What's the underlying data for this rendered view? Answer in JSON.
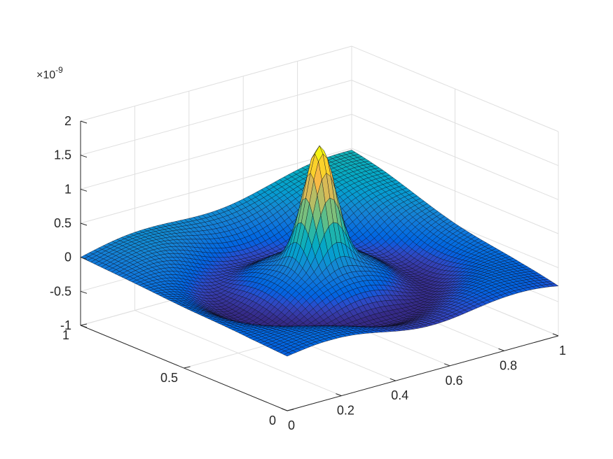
{
  "chart_data": {
    "type": "surface",
    "title": "",
    "xlabel": "",
    "ylabel": "",
    "zlabel": "",
    "x_range": [
      0,
      1
    ],
    "y_range": [
      0,
      1
    ],
    "z_range": [
      -1,
      2
    ],
    "z_exponent_label": "×10",
    "z_exponent_power": "-9",
    "grid": true,
    "colormap": "parula",
    "x_ticks": [
      0,
      0.2,
      0.4,
      0.6,
      0.8,
      1
    ],
    "x_tick_labels": [
      "0",
      "0.2",
      "0.4",
      "0.6",
      "0.8",
      "1"
    ],
    "y_ticks": [
      0,
      0.5,
      1
    ],
    "y_tick_labels": [
      "0",
      "0.5",
      "1"
    ],
    "z_ticks": [
      -1,
      -0.5,
      0,
      0.5,
      1,
      1.5,
      2
    ],
    "z_tick_labels": [
      "-1",
      "-0.5",
      "0",
      "0.5",
      "1",
      "1.5",
      "2"
    ],
    "surface_features": {
      "peak_location": [
        0.5,
        0.5
      ],
      "peak_value": 1.65,
      "ring_radius": 0.3,
      "ring_value": -0.35,
      "corner_values": {
        "x0_y1": 0.0,
        "x1_y1": 0.45,
        "x1_y0": -0.3,
        "x0_y0": -0.2
      }
    }
  }
}
